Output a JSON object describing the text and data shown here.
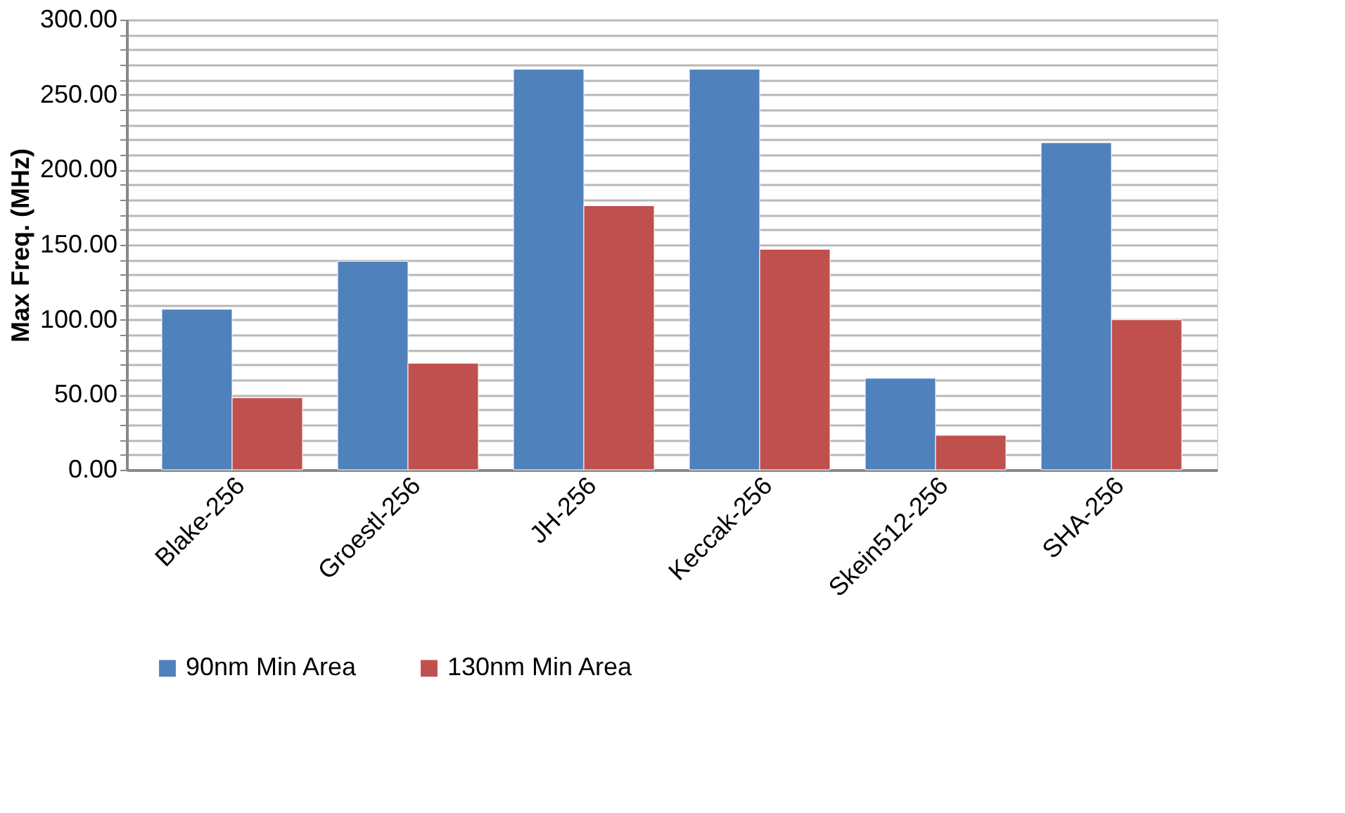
{
  "chart_data": {
    "type": "bar",
    "ylabel": "Max Freq. (MHz)",
    "categories": [
      "Blake-256",
      "Groestl-256",
      "JH-256",
      "Keccak-256",
      "Skein512-256",
      "SHA-256"
    ],
    "series": [
      {
        "name": "90nm Min Area",
        "color": "#4f81bd",
        "values": [
          107,
          139,
          267,
          267,
          61,
          218
        ]
      },
      {
        "name": "130nm Min Area",
        "color": "#c0504d",
        "values": [
          48,
          71,
          176,
          147,
          23,
          100
        ]
      }
    ],
    "ylim": [
      0,
      300
    ],
    "yticks": [
      {
        "value": 0,
        "label": "0.00"
      },
      {
        "value": 10,
        "label": null
      },
      {
        "value": 20,
        "label": null
      },
      {
        "value": 30,
        "label": null
      },
      {
        "value": 40,
        "label": null
      },
      {
        "value": 50,
        "label": "50.00"
      },
      {
        "value": 60,
        "label": null
      },
      {
        "value": 70,
        "label": null
      },
      {
        "value": 80,
        "label": null
      },
      {
        "value": 90,
        "label": null
      },
      {
        "value": 100,
        "label": "100.00"
      },
      {
        "value": 110,
        "label": null
      },
      {
        "value": 120,
        "label": null
      },
      {
        "value": 130,
        "label": null
      },
      {
        "value": 140,
        "label": null
      },
      {
        "value": 150,
        "label": "150.00"
      },
      {
        "value": 160,
        "label": null
      },
      {
        "value": 170,
        "label": null
      },
      {
        "value": 180,
        "label": null
      },
      {
        "value": 190,
        "label": null
      },
      {
        "value": 200,
        "label": "200.00"
      },
      {
        "value": 210,
        "label": null
      },
      {
        "value": 220,
        "label": null
      },
      {
        "value": 230,
        "label": null
      },
      {
        "value": 240,
        "label": null
      },
      {
        "value": 250,
        "label": "250.00"
      },
      {
        "value": 260,
        "label": null
      },
      {
        "value": 270,
        "label": null
      },
      {
        "value": 280,
        "label": null
      },
      {
        "value": 290,
        "label": null
      },
      {
        "value": 300,
        "label": "300.00"
      }
    ],
    "grid": true,
    "legend": "bottom"
  }
}
